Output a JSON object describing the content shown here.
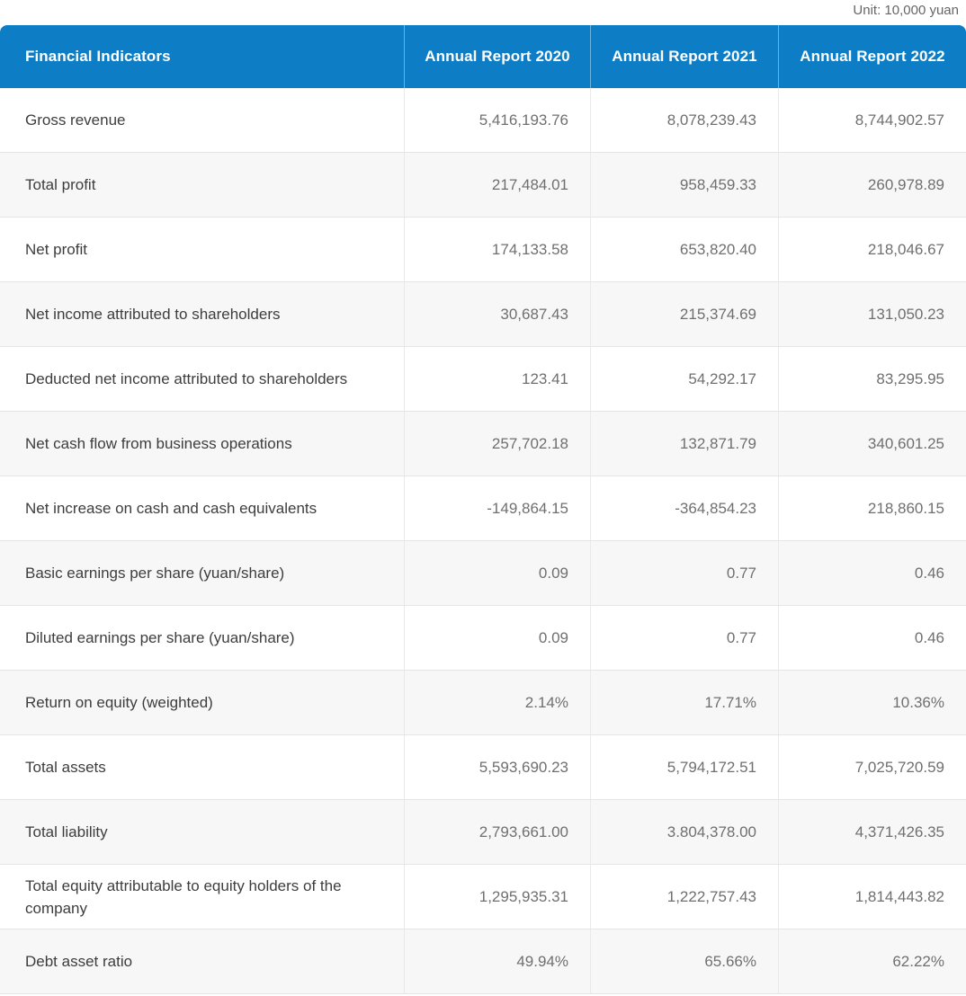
{
  "page": {
    "unit_label": "Unit: 10,000 yuan"
  },
  "colors": {
    "header_bg": "#0d7ec6",
    "header_text": "#ffffff",
    "row_alt_bg": "#f7f7f7",
    "label_text": "#3d3d3d",
    "value_text": "#6f6f6f",
    "unit_text": "#666666",
    "row_border": "#e5e5e5",
    "column_border": "#e9e9e9"
  },
  "chart_data": {
    "type": "table",
    "title": "Financial Indicators by Annual Report Year",
    "unit": "10,000 yuan",
    "columns": [
      "Financial Indicators",
      "Annual Report 2020",
      "Annual Report 2021",
      "Annual Report 2022"
    ],
    "rows": [
      {
        "label": "Gross revenue",
        "values": [
          "5,416,193.76",
          "8,078,239.43",
          "8,744,902.57"
        ]
      },
      {
        "label": "Total profit",
        "values": [
          "217,484.01",
          "958,459.33",
          "260,978.89"
        ]
      },
      {
        "label": "Net profit",
        "values": [
          "174,133.58",
          "653,820.40",
          "218,046.67"
        ]
      },
      {
        "label": "Net income attributed to shareholders",
        "values": [
          "30,687.43",
          "215,374.69",
          "131,050.23"
        ]
      },
      {
        "label": "Deducted net income attributed to shareholders",
        "values": [
          "123.41",
          "54,292.17",
          "83,295.95"
        ]
      },
      {
        "label": "Net cash flow from business operations",
        "values": [
          "257,702.18",
          "132,871.79",
          "340,601.25"
        ]
      },
      {
        "label": "Net increase on cash and cash equivalents",
        "values": [
          "-149,864.15",
          "-364,854.23",
          "218,860.15"
        ]
      },
      {
        "label": "Basic earnings per share (yuan/share)",
        "values": [
          "0.09",
          "0.77",
          "0.46"
        ]
      },
      {
        "label": "Diluted earnings per share (yuan/share)",
        "values": [
          "0.09",
          "0.77",
          "0.46"
        ]
      },
      {
        "label": "Return on equity (weighted)",
        "values": [
          "2.14%",
          "17.71%",
          "10.36%"
        ]
      },
      {
        "label": "Total assets",
        "values": [
          "5,593,690.23",
          "5,794,172.51",
          "7,025,720.59"
        ]
      },
      {
        "label": "Total liability",
        "values": [
          "2,793,661.00",
          "3.804,378.00",
          "4,371,426.35"
        ]
      },
      {
        "label": "Total equity attributable to equity holders of the company",
        "values": [
          "1,295,935.31",
          "1,222,757.43",
          "1,814,443.82"
        ]
      },
      {
        "label": "Debt asset ratio",
        "values": [
          "49.94%",
          "65.66%",
          "62.22%"
        ]
      }
    ]
  }
}
